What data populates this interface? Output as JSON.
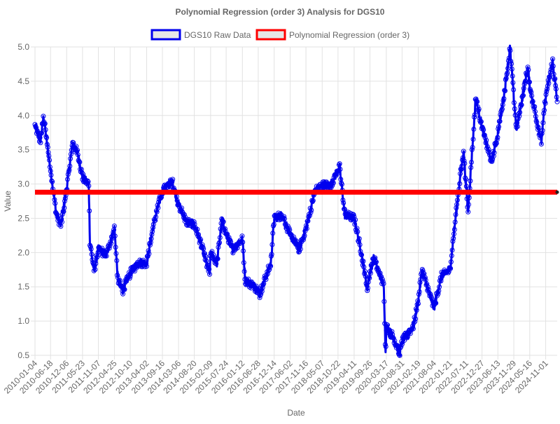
{
  "chart_data": {
    "type": "line",
    "title": "Polynomial Regression (order 3) Analysis for DGS10",
    "xlabel": "Date",
    "ylabel": "Value",
    "ylim": [
      0.5,
      5.0
    ],
    "y_ticks": [
      "0.5",
      "1.0",
      "1.5",
      "2.0",
      "2.5",
      "3.0",
      "3.5",
      "4.0",
      "4.5",
      "5.0"
    ],
    "x_tick_labels": [
      "2010-01-04",
      "2010-06-18",
      "2010-12-06",
      "2011-05-23",
      "2011-11-07",
      "2012-04-25",
      "2012-10-10",
      "2013-04-02",
      "2013-09-16",
      "2014-03-06",
      "2014-08-20",
      "2015-02-09",
      "2015-07-24",
      "2016-01-12",
      "2016-06-28",
      "2016-12-14",
      "2017-06-02",
      "2017-11-16",
      "2018-05-07",
      "2018-10-22",
      "2019-04-11",
      "2019-09-26",
      "2020-03-17",
      "2020-08-31",
      "2021-02-19",
      "2021-08-04",
      "2022-01-21",
      "2022-07-11",
      "2022-12-27",
      "2023-06-13",
      "2023-11-29",
      "2024-05-16",
      "2024-11-01"
    ],
    "legend_position": "top",
    "grid": true,
    "colors": {
      "raw": "#0000ee",
      "regression": "#ff0000",
      "legend_fill": "#e6e6e6"
    },
    "series": [
      {
        "name": "DGS10 Raw Data",
        "x": [
          "2010-01-04",
          "2010-03-01",
          "2010-04-05",
          "2010-06-18",
          "2010-08-20",
          "2010-10-08",
          "2010-12-06",
          "2011-02-08",
          "2011-04-01",
          "2011-05-23",
          "2011-07-28",
          "2011-08-10",
          "2011-09-22",
          "2011-11-07",
          "2012-02-01",
          "2012-04-25",
          "2012-06-01",
          "2012-07-24",
          "2012-10-10",
          "2013-01-02",
          "2013-04-02",
          "2013-06-20",
          "2013-09-05",
          "2013-09-16",
          "2013-12-31",
          "2014-03-06",
          "2014-05-28",
          "2014-08-20",
          "2014-10-15",
          "2015-01-30",
          "2015-02-09",
          "2015-04-17",
          "2015-06-10",
          "2015-07-24",
          "2015-10-01",
          "2016-01-12",
          "2016-02-11",
          "2016-06-28",
          "2016-07-08",
          "2016-11-09",
          "2016-12-14",
          "2017-03-13",
          "2017-06-02",
          "2017-09-07",
          "2017-11-16",
          "2018-02-21",
          "2018-05-07",
          "2018-08-01",
          "2018-10-22",
          "2018-11-08",
          "2019-01-03",
          "2019-04-11",
          "2019-06-20",
          "2019-08-28",
          "2019-09-26",
          "2019-11-07",
          "2020-02-20",
          "2020-03-09",
          "2020-03-17",
          "2020-06-05",
          "2020-08-04",
          "2020-08-31",
          "2020-12-31",
          "2021-02-19",
          "2021-03-31",
          "2021-08-04",
          "2021-10-21",
          "2022-01-21",
          "2022-04-22",
          "2022-06-14",
          "2022-07-11",
          "2022-08-01",
          "2022-10-21",
          "2022-12-27",
          "2023-04-06",
          "2023-06-13",
          "2023-08-22",
          "2023-10-19",
          "2023-11-29",
          "2023-12-27",
          "2024-04-25",
          "2024-05-16",
          "2024-09-16",
          "2024-11-01",
          "2025-01-14",
          "2025-03-03"
        ],
        "values": [
          3.85,
          3.62,
          3.98,
          3.2,
          2.55,
          2.4,
          2.95,
          3.6,
          3.45,
          3.1,
          3.0,
          2.15,
          1.72,
          2.05,
          1.97,
          2.35,
          1.6,
          1.45,
          1.7,
          1.85,
          1.85,
          2.45,
          2.85,
          2.9,
          3.03,
          2.7,
          2.45,
          2.4,
          2.2,
          1.68,
          2.0,
          1.85,
          2.48,
          2.25,
          2.05,
          2.2,
          1.6,
          1.46,
          1.37,
          1.85,
          2.5,
          2.55,
          2.25,
          2.05,
          2.35,
          2.9,
          2.98,
          2.98,
          3.2,
          3.24,
          2.55,
          2.5,
          2.05,
          1.47,
          1.72,
          1.92,
          1.5,
          0.54,
          0.92,
          0.75,
          0.52,
          0.7,
          0.93,
          1.3,
          1.74,
          1.19,
          1.65,
          1.75,
          2.9,
          3.49,
          2.96,
          2.6,
          4.25,
          3.83,
          3.31,
          3.74,
          4.34,
          4.98,
          4.27,
          3.79,
          4.7,
          4.42,
          3.62,
          4.28,
          4.79,
          4.2
        ]
      },
      {
        "name": "Polynomial Regression (order 3)",
        "x": [
          "2010-01-04",
          "2025-03-03"
        ],
        "values": [
          2.88,
          2.88
        ]
      }
    ]
  }
}
